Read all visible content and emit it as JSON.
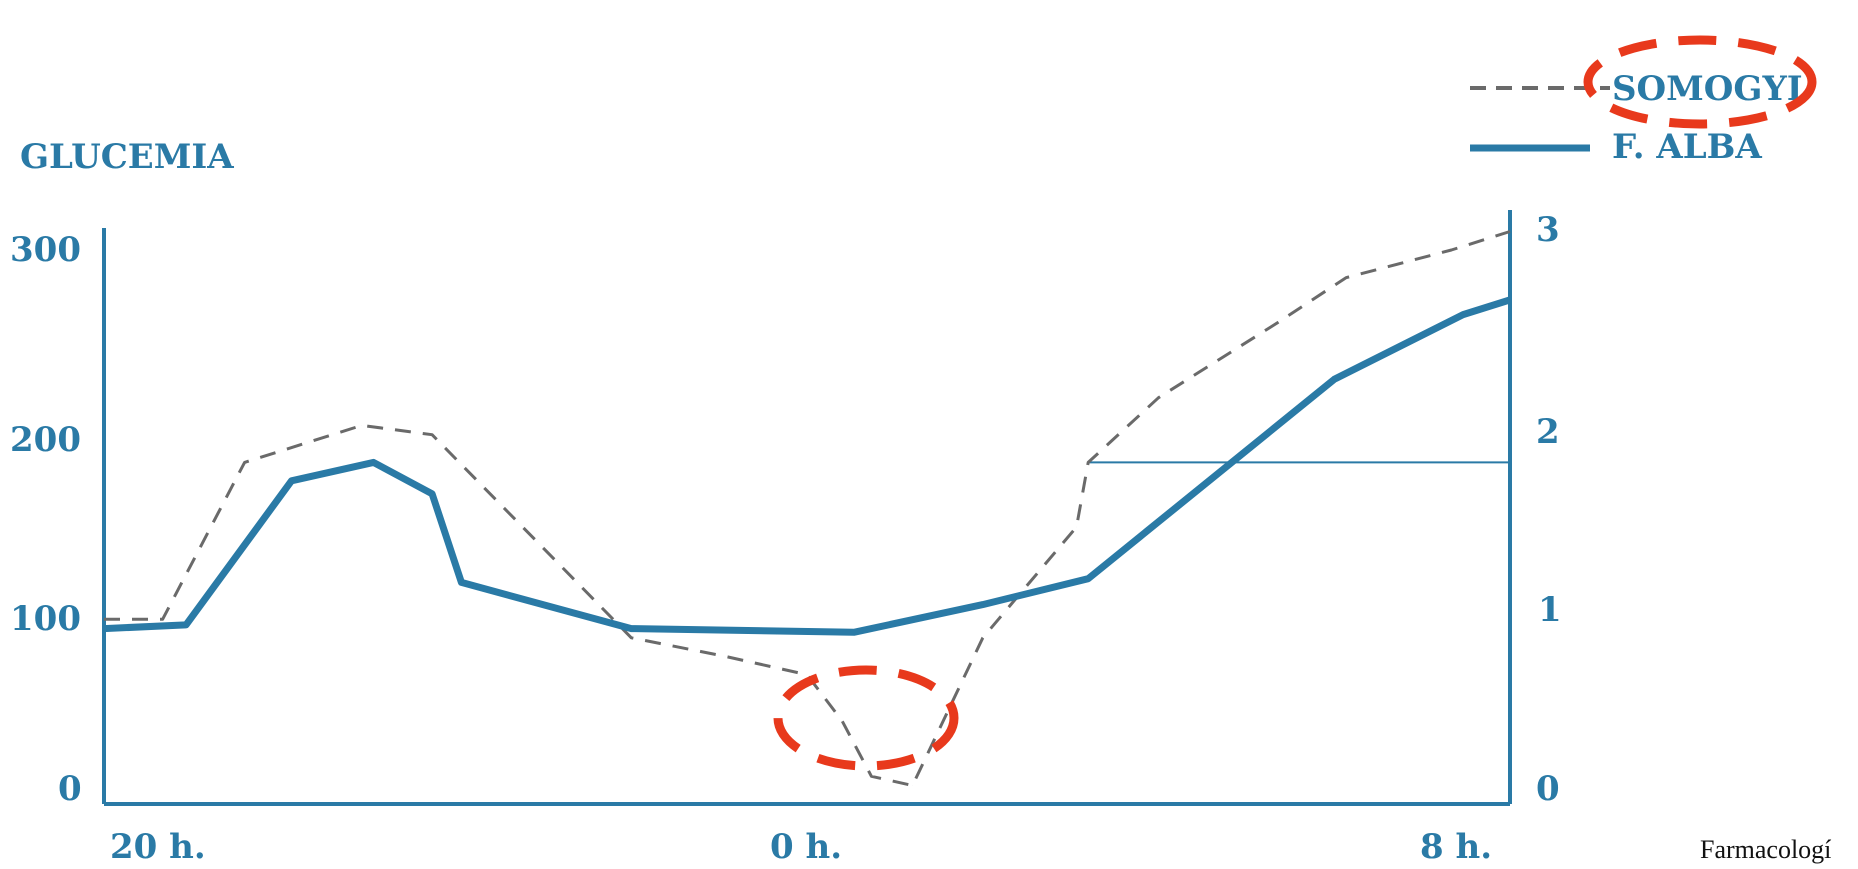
{
  "chart_data": {
    "type": "line",
    "title": "",
    "ylabel": "GLUCEMIA",
    "xlabel": "",
    "x_tick_labels": [
      "20 h.",
      "0 h.",
      "8 h."
    ],
    "left_y_ticks": [
      "0",
      "100",
      "200",
      "300"
    ],
    "right_y_ticks": [
      "0",
      "1",
      "2",
      "3"
    ],
    "ylim": [
      0,
      300
    ],
    "xlim": [
      0,
      12
    ],
    "x_hours_from_20h": [
      0,
      12
    ],
    "legend": {
      "placement": "top-right"
    },
    "series": [
      {
        "name": "SOMOGYI",
        "style": "dashed",
        "color": "#6a6a6a",
        "points": [
          [
            0.0,
            100
          ],
          [
            0.5,
            100
          ],
          [
            1.2,
            185
          ],
          [
            2.2,
            205
          ],
          [
            2.8,
            200
          ],
          [
            4.5,
            90
          ],
          [
            5.3,
            80
          ],
          [
            6.0,
            70
          ],
          [
            6.3,
            45
          ],
          [
            6.55,
            15
          ],
          [
            6.9,
            10
          ],
          [
            7.5,
            90
          ],
          [
            8.3,
            150
          ],
          [
            8.4,
            185
          ],
          [
            9.0,
            220
          ],
          [
            10.0,
            260
          ],
          [
            10.6,
            285
          ],
          [
            11.5,
            300
          ],
          [
            12.0,
            310
          ]
        ]
      },
      {
        "name": "F. ALBA",
        "style": "solid",
        "color": "#2a7aa6",
        "points": [
          [
            0.0,
            95
          ],
          [
            0.7,
            97
          ],
          [
            1.6,
            175
          ],
          [
            2.3,
            185
          ],
          [
            2.8,
            168
          ],
          [
            3.05,
            120
          ],
          [
            4.5,
            95
          ],
          [
            6.4,
            93
          ],
          [
            7.5,
            108
          ],
          [
            8.4,
            122
          ],
          [
            10.5,
            230
          ],
          [
            11.6,
            265
          ],
          [
            12.0,
            273
          ]
        ]
      }
    ],
    "reference_line": {
      "y": 185,
      "x_from": 8.4,
      "x_to": 12.0,
      "color": "#2a7aa6"
    },
    "annotations": [
      {
        "type": "circle",
        "target": "legend SOMOGYI",
        "color": "#e8391c",
        "style": "dashed"
      },
      {
        "type": "circle",
        "target": "SOMOGYI minimum near 0 h.",
        "color": "#e8391c",
        "style": "dashed"
      }
    ],
    "grid": false,
    "credit": "Farmacologí",
    "colors": {
      "axis": "#2a7aa6",
      "somogyi": "#6a6a6a",
      "alba": "#2a7aa6",
      "highlight": "#e8391c"
    }
  }
}
